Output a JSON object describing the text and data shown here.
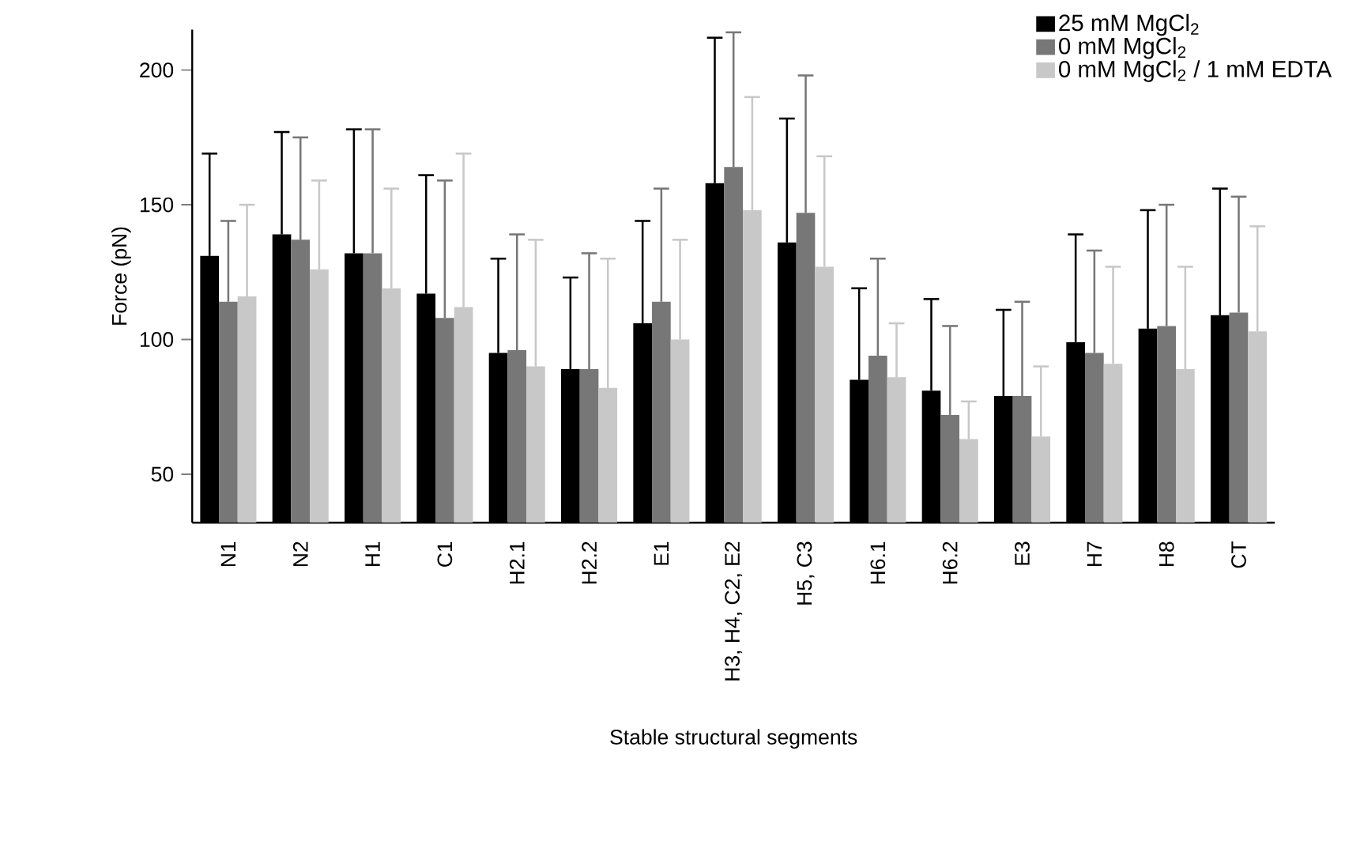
{
  "chart_data": {
    "type": "bar",
    "xlabel": "Stable structural segments",
    "ylabel": "Force (pN)",
    "categories": [
      "N1",
      "N2",
      "H1",
      "C1",
      "H2.1",
      "H2.2",
      "E1",
      "H3, H4, C2, E2",
      "H5, C3",
      "H6.1",
      "H6.2",
      "E3",
      "H7",
      "H8",
      "CT"
    ],
    "series": [
      {
        "name": "25 mM MgCl$_{2}$",
        "color": "#000000",
        "values": [
          131,
          139,
          132,
          117,
          95,
          89,
          106,
          158,
          136,
          85,
          81,
          79,
          99,
          104,
          109
        ],
        "errors": [
          [
            131,
            169
          ],
          [
            139,
            177
          ],
          [
            132,
            178
          ],
          [
            117,
            161
          ],
          [
            95,
            130
          ],
          [
            89,
            123
          ],
          [
            106,
            144
          ],
          [
            158,
            212
          ],
          [
            136,
            182
          ],
          [
            85,
            119
          ],
          [
            81,
            115
          ],
          [
            79,
            111
          ],
          [
            99,
            139
          ],
          [
            104,
            148
          ],
          [
            109,
            156
          ]
        ]
      },
      {
        "name": "0 mM MgCl$_{2}$",
        "color": "#777777",
        "values": [
          114,
          137,
          132,
          108,
          96,
          89,
          114,
          164,
          147,
          94,
          72,
          79,
          95,
          105,
          110
        ],
        "errors": [
          [
            114,
            144
          ],
          [
            137,
            175
          ],
          [
            132,
            178
          ],
          [
            108,
            159
          ],
          [
            96,
            139
          ],
          [
            89,
            132
          ],
          [
            114,
            156
          ],
          [
            164,
            214
          ],
          [
            147,
            198
          ],
          [
            94,
            130
          ],
          [
            72,
            105
          ],
          [
            79,
            114
          ],
          [
            95,
            133
          ],
          [
            105,
            150
          ],
          [
            110,
            153
          ]
        ]
      },
      {
        "name": "0 mM MgCl$_{2}$ / 1 mM EDTA",
        "color": "#c8c8c8",
        "values": [
          116,
          126,
          119,
          112,
          90,
          82,
          100,
          148,
          127,
          86,
          63,
          64,
          91,
          89,
          103
        ],
        "errors": [
          [
            116,
            150
          ],
          [
            126,
            159
          ],
          [
            119,
            156
          ],
          [
            112,
            169
          ],
          [
            90,
            137
          ],
          [
            82,
            130
          ],
          [
            100,
            137
          ],
          [
            148,
            190
          ],
          [
            127,
            168
          ],
          [
            86,
            106
          ],
          [
            63,
            77
          ],
          [
            64,
            90
          ],
          [
            91,
            127
          ],
          [
            89,
            127
          ],
          [
            103,
            142
          ]
        ]
      }
    ],
    "ylim": [
      32,
      215
    ],
    "yticks": [
      50,
      100,
      150,
      200
    ],
    "grid": false,
    "legend": "top right"
  }
}
